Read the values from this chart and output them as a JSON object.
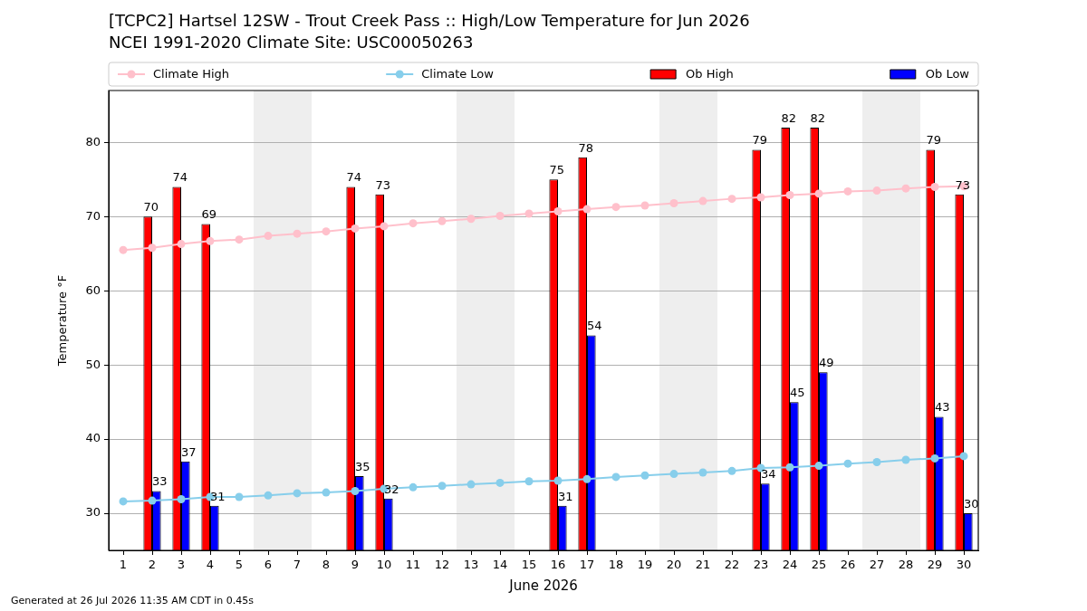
{
  "chart_data": {
    "type": "bar",
    "title": "[TCPC2] Hartsel 12SW - Trout Creek Pass :: High/Low Temperature for Jun 2026",
    "subtitle": "NCEI 1991-2020 Climate Site: USC00050263",
    "xlabel": "June 2026",
    "ylabel": "Temperature °F",
    "annotations": [
      "Generated at 26 Jul 2026 11:35 AM CDT in 0.45s"
    ],
    "x": [
      1,
      2,
      3,
      4,
      5,
      6,
      7,
      8,
      9,
      10,
      11,
      12,
      13,
      14,
      15,
      16,
      17,
      18,
      19,
      20,
      21,
      22,
      23,
      24,
      25,
      26,
      27,
      28,
      29,
      30
    ],
    "series": [
      {
        "name": "Climate High",
        "type": "line",
        "color": "#ffc0cb",
        "values": [
          65.5,
          65.8,
          66.3,
          66.7,
          66.9,
          67.4,
          67.7,
          68.0,
          68.4,
          68.7,
          69.1,
          69.4,
          69.7,
          70.1,
          70.4,
          70.7,
          71.0,
          71.3,
          71.5,
          71.8,
          72.1,
          72.4,
          72.6,
          72.9,
          73.1,
          73.4,
          73.5,
          73.8,
          74.0,
          74.1
        ]
      },
      {
        "name": "Climate Low",
        "type": "line",
        "color": "#87ceeb",
        "values": [
          31.6,
          31.7,
          31.9,
          32.2,
          32.2,
          32.4,
          32.7,
          32.8,
          33.0,
          33.3,
          33.5,
          33.7,
          33.9,
          34.1,
          34.3,
          34.4,
          34.6,
          34.9,
          35.1,
          35.3,
          35.5,
          35.7,
          36.1,
          36.2,
          36.4,
          36.7,
          36.9,
          37.2,
          37.4,
          37.7
        ]
      },
      {
        "name": "Ob High",
        "color": "#ff0000",
        "values": [
          null,
          70,
          74,
          69,
          null,
          null,
          null,
          null,
          74,
          73,
          null,
          null,
          null,
          null,
          null,
          75,
          78,
          null,
          null,
          null,
          null,
          null,
          79,
          82,
          82,
          null,
          null,
          null,
          79,
          73
        ],
        "value_labels": [
          null,
          "70",
          "74",
          "69",
          null,
          null,
          null,
          null,
          "74",
          "73",
          null,
          null,
          null,
          null,
          null,
          "75",
          "78",
          null,
          null,
          null,
          null,
          null,
          "79",
          "82",
          "82",
          null,
          null,
          null,
          "79",
          "73"
        ]
      },
      {
        "name": "Ob Low",
        "color": "#0000ff",
        "values": [
          null,
          33,
          37,
          31,
          null,
          null,
          null,
          null,
          35,
          32,
          null,
          null,
          null,
          null,
          null,
          31,
          54,
          null,
          null,
          null,
          null,
          null,
          34,
          45,
          49,
          null,
          null,
          null,
          43,
          30
        ],
        "value_labels": [
          null,
          "33",
          "37",
          "31",
          null,
          null,
          null,
          null,
          "35",
          "32",
          null,
          null,
          null,
          null,
          null,
          "31",
          "54",
          null,
          null,
          null,
          null,
          null,
          "34",
          "45",
          "49",
          null,
          null,
          null,
          "43",
          "30"
        ]
      }
    ],
    "xlim": [
      0.5,
      30.5
    ],
    "xticks": [
      1,
      2,
      3,
      4,
      5,
      6,
      7,
      8,
      9,
      10,
      11,
      12,
      13,
      14,
      15,
      16,
      17,
      18,
      19,
      20,
      21,
      22,
      23,
      24,
      25,
      26,
      27,
      28,
      29,
      30
    ],
    "ylim": [
      25,
      87
    ],
    "yticks": [
      30,
      40,
      50,
      60,
      70,
      80
    ],
    "bands": [
      {
        "axis": "x",
        "from": 5.5,
        "to": 7.5,
        "color": "#eeeeee"
      },
      {
        "axis": "x",
        "from": 12.5,
        "to": 14.5,
        "color": "#eeeeee"
      },
      {
        "axis": "x",
        "from": 19.5,
        "to": 21.5,
        "color": "#eeeeee"
      },
      {
        "axis": "x",
        "from": 26.5,
        "to": 28.5,
        "color": "#eeeeee"
      }
    ],
    "grid": "y",
    "legend": "top",
    "marker": "circle",
    "line_style": "solid"
  }
}
